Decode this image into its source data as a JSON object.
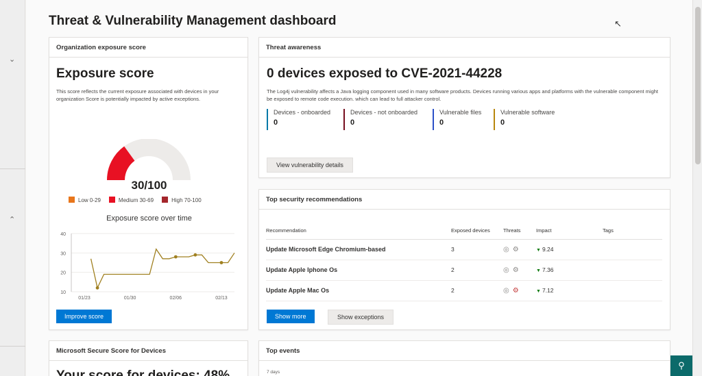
{
  "page": {
    "title": "Threat & Vulnerability Management dashboard"
  },
  "exposure": {
    "header": "Organization exposure score",
    "title": "Exposure score",
    "description": "This score reflects the current exposure associated with devices in your organization Score is potentially impacted by active exceptions.",
    "score_text": "30/100",
    "score_value": 30,
    "legend": [
      {
        "label": "Low 0-29",
        "color": "#e8761b"
      },
      {
        "label": "Medium 30-69",
        "color": "#e81123"
      },
      {
        "label": "High 70-100",
        "color": "#a4262c"
      }
    ],
    "gauge_color": "#e81123",
    "gauge_track_color": "#edebe9",
    "chart_title": "Exposure score over time",
    "improve_button": "Improve score"
  },
  "chart_data": {
    "type": "line",
    "title": "Exposure score over time",
    "x_ticks": [
      "01/23",
      "01/30",
      "02/06",
      "02/13"
    ],
    "y_ticks": [
      10,
      20,
      30,
      40
    ],
    "ylim": [
      10,
      40
    ],
    "x": [
      "01/21",
      "01/22",
      "01/23",
      "01/24",
      "01/25",
      "01/26",
      "01/27",
      "01/28",
      "01/29",
      "01/30",
      "01/31",
      "02/01",
      "02/02",
      "02/03",
      "02/04",
      "02/05",
      "02/06",
      "02/07",
      "02/08",
      "02/09",
      "02/10",
      "02/11",
      "02/12",
      "02/13",
      "02/14",
      "02/15"
    ],
    "series": [
      {
        "color": "#a08020",
        "values": [
          null,
          null,
          null,
          27,
          12,
          19,
          19,
          19,
          19,
          19,
          19,
          19,
          19,
          32,
          27,
          27,
          28,
          28,
          28,
          29,
          29,
          25,
          25,
          25,
          25,
          30
        ],
        "markers": [
          4,
          16,
          19,
          23
        ]
      }
    ]
  },
  "threat": {
    "header": "Threat awareness",
    "title": "0 devices exposed to CVE-2021-44228",
    "description": "The Log4j vulnerability affects a Java logging component used in many software products. Devices running various apps and platforms with the vulnerable component might be exposed to remote code execution. which can lead to full attacker control.",
    "stats": [
      {
        "label": "Devices - onboarded",
        "value": "0",
        "color": "#0078a8"
      },
      {
        "label": "Devices - not onboarded",
        "value": "0",
        "color": "#750b1c"
      },
      {
        "label": "Vulnerable files",
        "value": "0",
        "color": "#2b50c8"
      },
      {
        "label": "Vulnerable software",
        "value": "0",
        "color": "#b8860b"
      }
    ],
    "view_button": "View vulnerability details"
  },
  "recommendations": {
    "header": "Top security recommendations",
    "columns": [
      "Recommendation",
      "Exposed devices",
      "Threats",
      "Impact",
      "Tags"
    ],
    "rows": [
      {
        "name": "Update Microsoft Edge Chromium-based",
        "devices": "3",
        "impact": "9.24"
      },
      {
        "name": "Update Apple Iphone Os",
        "devices": "2",
        "impact": "7.36"
      },
      {
        "name": "Update Apple Mac Os",
        "devices": "2",
        "impact": "7.12"
      }
    ],
    "show_more": "Show more",
    "show_exceptions": "Show exceptions"
  },
  "secure_score": {
    "header": "Microsoft Secure Score for Devices",
    "title": "Your score for devices: 48%"
  },
  "events": {
    "header": "Top events",
    "range": "7 days"
  },
  "icons": {
    "nav_collapse": "chevron-down-icon",
    "nav_expand": "chevron-up-icon",
    "threat_exploit": "target-icon",
    "threat_bug": "bug-icon",
    "help_fab": "chat-help-icon"
  }
}
